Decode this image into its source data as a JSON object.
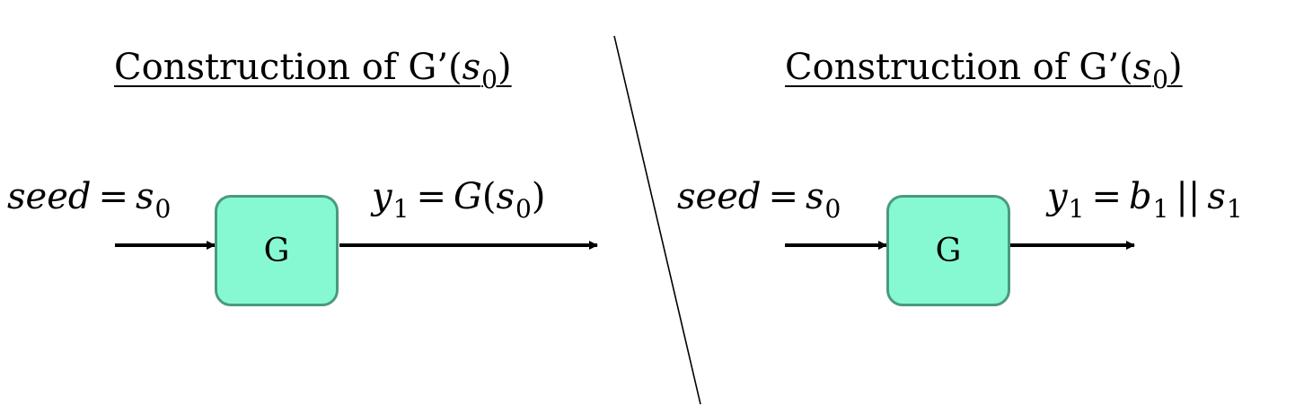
{
  "left_panel": {
    "title_text": "Construction of G’(",
    "title_var": "s",
    "title_sub": "0",
    "title_close": ")",
    "input_lhs": "seed",
    "input_eq": "=",
    "input_var": "s",
    "input_sub": "0",
    "box_label": "G",
    "output_lhs_var": "y",
    "output_lhs_sub": "1",
    "output_eq": "=",
    "output_func": "G",
    "output_open": "(",
    "output_arg_var": "s",
    "output_arg_sub": "0",
    "output_close": ")"
  },
  "right_panel": {
    "title_text": "Construction of G’(",
    "title_var": "s",
    "title_sub": "0",
    "title_close": ")",
    "input_lhs": "seed",
    "input_eq": "=",
    "input_var": "s",
    "input_sub": "0",
    "box_label": "G",
    "output_lhs_var": "y",
    "output_lhs_sub": "1",
    "output_eq": "=",
    "output_b_var": "b",
    "output_b_sub": "1",
    "output_concat": "||",
    "output_s_var": "s",
    "output_s_sub": "1"
  },
  "colors": {
    "box_fill": "#86f9d3",
    "box_border": "#4a9a7c",
    "arrow": "#000000"
  }
}
